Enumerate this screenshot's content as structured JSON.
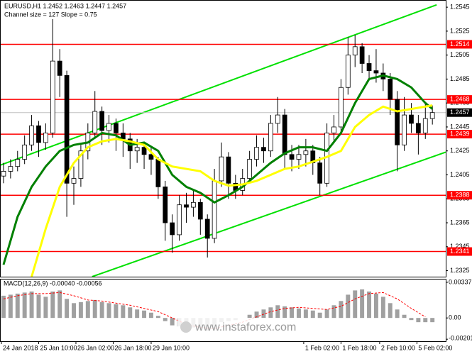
{
  "chart_data": {
    "type": "candlestick",
    "title": "EURUSD,H1 1.2452 1.2463 1.2447 1.2457",
    "subtitle": "Channel size = 127 Slope = 0.75",
    "watermark": "www.instaforex.com",
    "xlim": [
      -0.5,
      62.9
    ],
    "ylim": [
      1.232,
      1.2551
    ],
    "yticks": [
      1.2545,
      1.2525,
      1.2505,
      1.2485,
      1.2465,
      1.2445,
      1.2425,
      1.2405,
      1.2385,
      1.2365,
      1.2345,
      1.2325
    ],
    "xticks": [
      {
        "value": -0.3,
        "label": "24 Jan 2018"
      },
      {
        "value": 5,
        "label": "25 Jan 10:00"
      },
      {
        "value": 10.3,
        "label": "26 Jan 02:00"
      },
      {
        "value": 15.6,
        "label": "26 Jan 18:00"
      },
      {
        "value": 21,
        "label": "29 Jan 10:00"
      },
      {
        "value": 42.7,
        "label": "1 Feb 02:00"
      },
      {
        "value": 48,
        "label": "1 Feb 18:00"
      },
      {
        "value": 53.5,
        "label": "2 Feb 10:00"
      },
      {
        "value": 58.8,
        "label": "5 Feb 02:00"
      }
    ],
    "candles": [
      [
        1.2404,
        1.2415,
        1.2398,
        1.2408
      ],
      [
        1.2408,
        1.2418,
        1.2402,
        1.2412
      ],
      [
        1.2412,
        1.2425,
        1.2408,
        1.2418
      ],
      [
        1.2418,
        1.2438,
        1.2414,
        1.243
      ],
      [
        1.243,
        1.2455,
        1.2425,
        1.2446
      ],
      [
        1.2446,
        1.245,
        1.242,
        1.2432
      ],
      [
        1.2432,
        1.2448,
        1.2426,
        1.244
      ],
      [
        1.244,
        1.2535,
        1.2436,
        1.25
      ],
      [
        1.25,
        1.251,
        1.247,
        1.2488
      ],
      [
        1.2488,
        1.2492,
        1.237,
        1.2398
      ],
      [
        1.2398,
        1.2412,
        1.238,
        1.2402
      ],
      [
        1.2402,
        1.243,
        1.2395,
        1.2425
      ],
      [
        1.2425,
        1.2448,
        1.2418,
        1.244
      ],
      [
        1.244,
        1.2475,
        1.2435,
        1.2458
      ],
      [
        1.2458,
        1.2462,
        1.243,
        1.2442
      ],
      [
        1.2442,
        1.2455,
        1.2432,
        1.2448
      ],
      [
        1.2448,
        1.2452,
        1.2425,
        1.244
      ],
      [
        1.244,
        1.2448,
        1.242,
        1.2435
      ],
      [
        1.2435,
        1.244,
        1.241,
        1.2425
      ],
      [
        1.2425,
        1.2435,
        1.2415,
        1.2428
      ],
      [
        1.2428,
        1.2432,
        1.241,
        1.2422
      ],
      [
        1.2422,
        1.2428,
        1.2405,
        1.2418
      ],
      [
        1.2418,
        1.242,
        1.2385,
        1.2395
      ],
      [
        1.2395,
        1.24,
        1.235,
        1.2365
      ],
      [
        1.2365,
        1.2372,
        1.234,
        1.2355
      ],
      [
        1.2355,
        1.2388,
        1.235,
        1.238
      ],
      [
        1.238,
        1.239,
        1.2365,
        1.2378
      ],
      [
        1.2378,
        1.2392,
        1.237,
        1.2382
      ],
      [
        1.2382,
        1.2385,
        1.2355,
        1.2368
      ],
      [
        1.2368,
        1.2372,
        1.2336,
        1.2352
      ],
      [
        1.2352,
        1.241,
        1.2348,
        1.24
      ],
      [
        1.24,
        1.2432,
        1.2395,
        1.242
      ],
      [
        1.242,
        1.2424,
        1.2385,
        1.2398
      ],
      [
        1.2398,
        1.2405,
        1.2385,
        1.2392
      ],
      [
        1.2392,
        1.241,
        1.2388,
        1.2402
      ],
      [
        1.2402,
        1.2425,
        1.2398,
        1.2418
      ],
      [
        1.2418,
        1.2438,
        1.2412,
        1.2428
      ],
      [
        1.2428,
        1.2436,
        1.2415,
        1.2425
      ],
      [
        1.2425,
        1.2455,
        1.242,
        1.2448
      ],
      [
        1.2448,
        1.247,
        1.244,
        1.2455
      ],
      [
        1.2455,
        1.246,
        1.241,
        1.2422
      ],
      [
        1.2422,
        1.243,
        1.2408,
        1.2418
      ],
      [
        1.2418,
        1.243,
        1.241,
        1.2422
      ],
      [
        1.2422,
        1.2435,
        1.2412,
        1.2425
      ],
      [
        1.2425,
        1.243,
        1.2405,
        1.2415
      ],
      [
        1.2415,
        1.242,
        1.2388,
        1.2398
      ],
      [
        1.2398,
        1.2448,
        1.2395,
        1.244
      ],
      [
        1.244,
        1.2455,
        1.2432,
        1.2445
      ],
      [
        1.2445,
        1.2485,
        1.244,
        1.2478
      ],
      [
        1.2478,
        1.252,
        1.2472,
        1.2505
      ],
      [
        1.2505,
        1.2522,
        1.2495,
        1.2512
      ],
      [
        1.2512,
        1.2515,
        1.249,
        1.2498
      ],
      [
        1.2498,
        1.2505,
        1.2485,
        1.2492
      ],
      [
        1.2492,
        1.251,
        1.2482,
        1.249
      ],
      [
        1.249,
        1.2498,
        1.2475,
        1.2485
      ],
      [
        1.2485,
        1.249,
        1.2455,
        1.2468
      ],
      [
        1.2468,
        1.2475,
        1.2408,
        1.243
      ],
      [
        1.243,
        1.247,
        1.2425,
        1.2455
      ],
      [
        1.2455,
        1.2465,
        1.244,
        1.2448
      ],
      [
        1.2448,
        1.2455,
        1.2422,
        1.244
      ],
      [
        1.244,
        1.2465,
        1.2435,
        1.2452
      ],
      [
        1.2452,
        1.2463,
        1.2447,
        1.2457
      ]
    ],
    "series": [
      {
        "color": "#008000",
        "width": 3,
        "x": [
          0,
          2,
          4,
          6,
          8,
          10,
          12,
          14,
          16,
          18,
          20,
          22,
          24,
          26,
          28,
          30,
          32,
          34,
          36,
          38,
          40,
          42,
          44,
          46,
          48,
          50,
          52,
          54,
          56,
          58,
          60,
          61
        ],
        "values": [
          1.233,
          1.237,
          1.2395,
          1.2412,
          1.2425,
          1.243,
          1.2432,
          1.244,
          1.2438,
          1.243,
          1.2432,
          1.2425,
          1.2405,
          1.2395,
          1.239,
          1.2382,
          1.2388,
          1.2395,
          1.2405,
          1.2415,
          1.2423,
          1.2428,
          1.2428,
          1.2425,
          1.244,
          1.2465,
          1.2485,
          1.2488,
          1.2485,
          1.2478,
          1.2465,
          1.246
        ]
      },
      {
        "color": "#ffff00",
        "width": 3,
        "x": [
          4,
          6,
          8,
          10,
          12,
          14,
          16,
          18,
          20,
          22,
          24,
          26,
          28,
          30,
          32,
          34,
          36,
          38,
          40,
          42,
          44,
          46,
          48,
          50,
          52,
          54,
          56,
          58,
          60,
          61
        ],
        "values": [
          1.232,
          1.236,
          1.2395,
          1.2415,
          1.2428,
          1.2433,
          1.2435,
          1.2433,
          1.243,
          1.2418,
          1.2412,
          1.241,
          1.2408,
          1.24,
          1.2396,
          1.2397,
          1.24,
          1.2405,
          1.241,
          1.2412,
          1.2416,
          1.242,
          1.2425,
          1.2445,
          1.2455,
          1.2462,
          1.2458,
          1.246,
          1.2462,
          1.2463
        ]
      }
    ],
    "channel": {
      "color": "#00e000",
      "upper": {
        "x": [
          -0.5,
          61.6
        ],
        "values": [
          1.2413,
          1.2547
        ]
      },
      "lower": {
        "x": [
          12.6,
          62.9
        ],
        "values": [
          1.232,
          1.2424
        ]
      }
    },
    "levels": [
      1.2514,
      1.2468,
      1.2439,
      1.2388,
      1.2341
    ],
    "level_color": "#ff0000",
    "last_price": 1.2457,
    "macd": {
      "title": "MACD(12,26,9) -0.00040 -0.00056",
      "ylim": [
        -0.0022,
        0.0037
      ],
      "yticks": [
        0.00337,
        {
          "value": 0,
          "label": "0.00"
        },
        -0.00201
      ],
      "histogram": [
        0.0021,
        0.0022,
        0.0023,
        0.0024,
        0.0025,
        0.0022,
        0.002,
        0.0025,
        0.0026,
        0.0018,
        0.0014,
        0.0015,
        0.0016,
        0.0017,
        0.0015,
        0.0014,
        0.0013,
        0.0012,
        0.001,
        0.0008,
        0.0007,
        0.0005,
        0.0002,
        -0.0003,
        -0.0007,
        -0.0008,
        -0.0009,
        -0.0009,
        -0.001,
        -0.0012,
        -0.0008,
        -0.0004,
        -0.0003,
        -0.0002,
        0,
        0.0003,
        0.0006,
        0.0008,
        0.001,
        0.0012,
        0.0011,
        0.001,
        0.0009,
        0.0008,
        0.0007,
        0.0005,
        0.0008,
        0.0012,
        0.0016,
        0.0022,
        0.0026,
        0.0027,
        0.0025,
        0.0023,
        0.002,
        0.0014,
        0.0008,
        0.0003,
        -0.0002,
        -0.0004,
        -0.0004,
        -0.0004
      ],
      "histogram_color": "#a0a0a0",
      "signal_color": "#ff0000",
      "signal_x": [
        0,
        2,
        4,
        6,
        8,
        10,
        12,
        14,
        16,
        18,
        20,
        22,
        24,
        26,
        28,
        30,
        32,
        34,
        36,
        38,
        40,
        42,
        44,
        46,
        48,
        50,
        52,
        54,
        56,
        58,
        60
      ],
      "signal": [
        0.0018,
        0.0021,
        0.0023,
        0.0023,
        0.0024,
        0.0021,
        0.0017,
        0.0016,
        0.0014,
        0.0012,
        0.0009,
        0.0006,
        0.0,
        -0.0006,
        -0.0009,
        -0.001,
        -0.0007,
        -0.0004,
        0.0001,
        0.0006,
        0.0009,
        0.001,
        0.0009,
        0.0008,
        0.0011,
        0.0018,
        0.0023,
        0.0024,
        0.0018,
        0.0009,
        0.0001
      ]
    }
  }
}
